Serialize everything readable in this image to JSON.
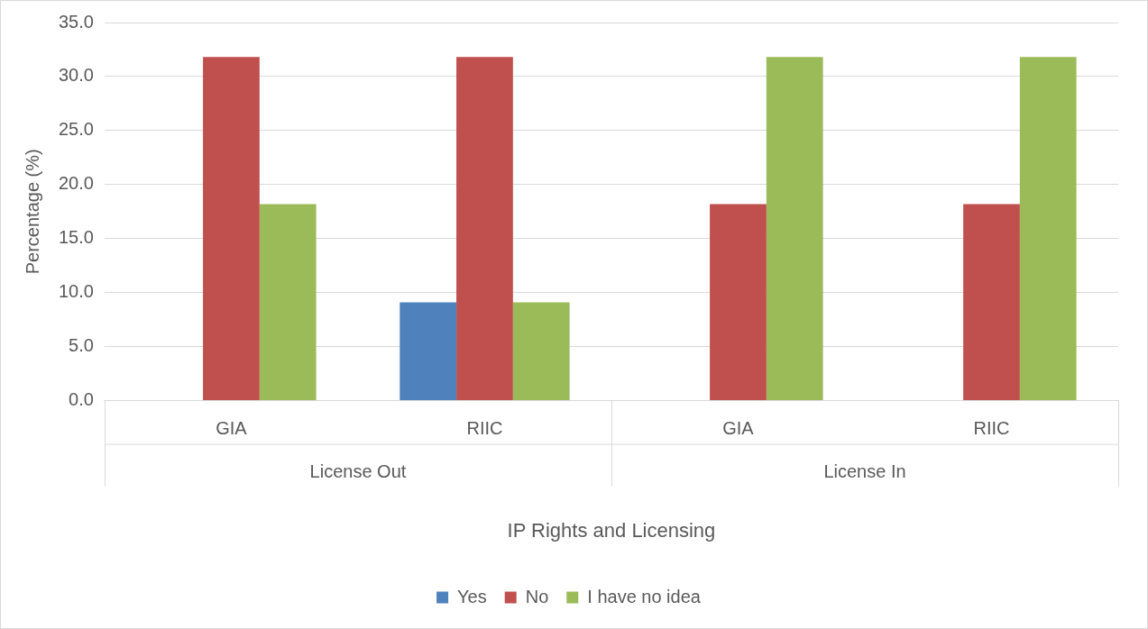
{
  "chart_data": {
    "type": "bar",
    "xlabel": "IP Rights and Licensing",
    "ylabel": "Percentage (%)",
    "categories": [
      "GIA",
      "RIIC",
      "GIA",
      "RIIC"
    ],
    "annotations": [
      "License Out",
      "License In"
    ],
    "series": [
      {
        "name": "Yes",
        "color": "#4f81bd",
        "values": [
          0,
          9.1,
          0,
          0
        ]
      },
      {
        "name": "No",
        "color": "#c0504d",
        "values": [
          31.8,
          31.8,
          18.2,
          18.2
        ]
      },
      {
        "name": "I have no idea",
        "color": "#9bbb59",
        "values": [
          18.2,
          9.1,
          31.8,
          31.8
        ]
      }
    ],
    "ylim": [
      0,
      35
    ],
    "yticks": [
      {
        "value": 0,
        "label": "0.0"
      },
      {
        "value": 5,
        "label": "5.0"
      },
      {
        "value": 10,
        "label": "10.0"
      },
      {
        "value": 15,
        "label": "15.0"
      },
      {
        "value": 20,
        "label": "20.0"
      },
      {
        "value": 25,
        "label": "25.0"
      },
      {
        "value": 30,
        "label": "30.0"
      },
      {
        "value": 35,
        "label": "35.0"
      }
    ],
    "grid": "y",
    "legend": "bottom"
  }
}
